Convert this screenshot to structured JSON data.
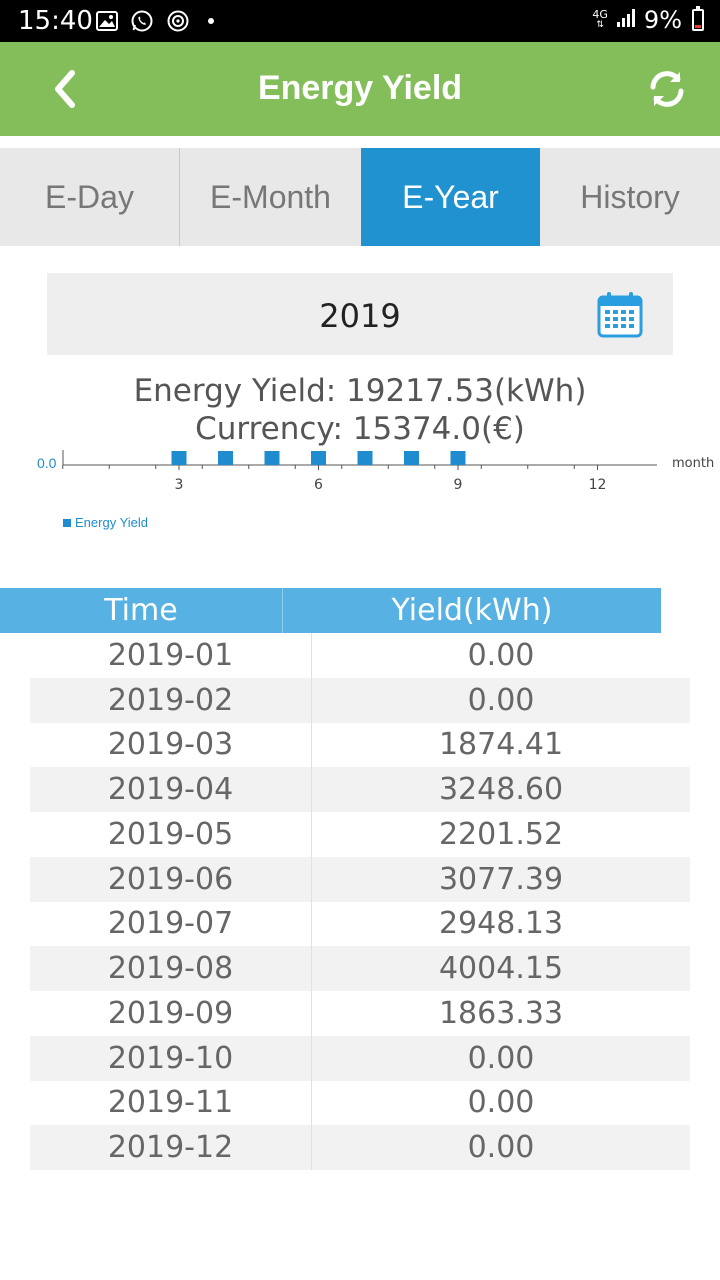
{
  "status_bar": {
    "time": "15:40",
    "network": "4G",
    "battery": "9%",
    "icons": [
      "gallery-icon",
      "whatsapp-icon",
      "sync-app-icon",
      "notification-dot-icon",
      "signal-icon",
      "battery-icon"
    ]
  },
  "header": {
    "title": "Energy Yield",
    "back_icon": "chevron-left-icon",
    "refresh_icon": "refresh-icon"
  },
  "tabs": [
    {
      "label": "E-Day",
      "active": false
    },
    {
      "label": "E-Month",
      "active": false
    },
    {
      "label": "E-Year",
      "active": true
    },
    {
      "label": "History",
      "active": false
    }
  ],
  "date_picker": {
    "value": "2019",
    "icon": "calendar-icon"
  },
  "summary": {
    "energy_yield": "Energy Yield: 19217.53(kWh)",
    "currency": "Currency: 15374.0(€)"
  },
  "chart_data": {
    "type": "scatter",
    "x": [
      1,
      2,
      3,
      4,
      5,
      6,
      7,
      8,
      9,
      10,
      11,
      12
    ],
    "y_label": "0.0",
    "markers_at_months": [
      3,
      4,
      5,
      6,
      7,
      8,
      9
    ],
    "x_ticks": [
      "3",
      "6",
      "9",
      "12"
    ],
    "xlabel": "month",
    "legend": [
      "Energy Yield"
    ],
    "legend_position": "bottom-left",
    "series_color": "#1f8ccf"
  },
  "table": {
    "headers": [
      "Time",
      "Yield(kWh)"
    ],
    "rows": [
      [
        "2019-01",
        "0.00"
      ],
      [
        "2019-02",
        "0.00"
      ],
      [
        "2019-03",
        "1874.41"
      ],
      [
        "2019-04",
        "3248.60"
      ],
      [
        "2019-05",
        "2201.52"
      ],
      [
        "2019-06",
        "3077.39"
      ],
      [
        "2019-07",
        "2948.13"
      ],
      [
        "2019-08",
        "4004.15"
      ],
      [
        "2019-09",
        "1863.33"
      ],
      [
        "2019-10",
        "0.00"
      ],
      [
        "2019-11",
        "0.00"
      ],
      [
        "2019-12",
        "0.00"
      ]
    ]
  },
  "colors": {
    "header": "#84be5b",
    "active_tab": "#1f92cf",
    "table_header": "#57b2e3"
  }
}
